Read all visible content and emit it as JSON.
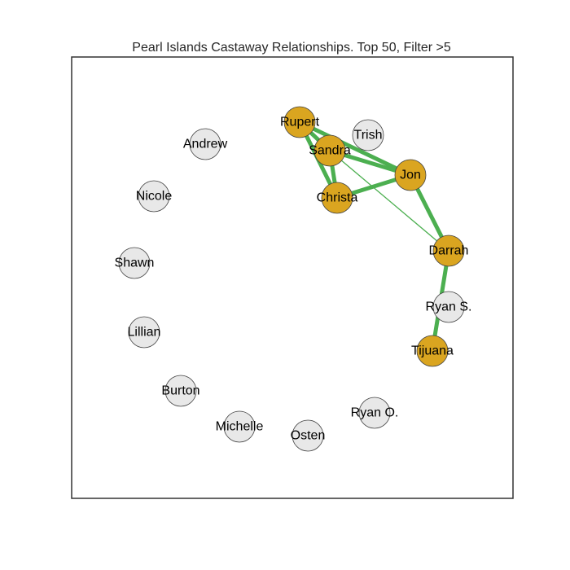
{
  "title": "Pearl Islands Castaway Relationships. Top 50, Filter >5",
  "colors": {
    "highlight_node": "#DAA520",
    "default_node": "#E8E8E8",
    "node_stroke": "#444444",
    "edge": "#4CAF50",
    "frame": "#333333"
  },
  "nodes": [
    {
      "id": "rupert",
      "label": "Rupert",
      "highlight": true
    },
    {
      "id": "trish",
      "label": "Trish",
      "highlight": false
    },
    {
      "id": "sandra",
      "label": "Sandra",
      "highlight": true
    },
    {
      "id": "andrew",
      "label": "Andrew",
      "highlight": false
    },
    {
      "id": "jon",
      "label": "Jon",
      "highlight": true
    },
    {
      "id": "nicole",
      "label": "Nicole",
      "highlight": false
    },
    {
      "id": "christa",
      "label": "Christa",
      "highlight": true
    },
    {
      "id": "darrah",
      "label": "Darrah",
      "highlight": true
    },
    {
      "id": "shawn",
      "label": "Shawn",
      "highlight": false
    },
    {
      "id": "ryan-s",
      "label": "Ryan S.",
      "highlight": false
    },
    {
      "id": "lillian",
      "label": "Lillian",
      "highlight": false
    },
    {
      "id": "tijuana",
      "label": "Tijuana",
      "highlight": true
    },
    {
      "id": "burton",
      "label": "Burton",
      "highlight": false
    },
    {
      "id": "ryan-o",
      "label": "Ryan O.",
      "highlight": false
    },
    {
      "id": "michelle",
      "label": "Michelle",
      "highlight": false
    },
    {
      "id": "osten",
      "label": "Osten",
      "highlight": false
    }
  ],
  "edges": [
    {
      "source": "rupert",
      "target": "sandra",
      "weight": "heavy"
    },
    {
      "source": "rupert",
      "target": "christa",
      "weight": "heavy"
    },
    {
      "source": "rupert",
      "target": "jon",
      "weight": "heavy"
    },
    {
      "source": "sandra",
      "target": "christa",
      "weight": "heavy"
    },
    {
      "source": "sandra",
      "target": "jon",
      "weight": "heavy"
    },
    {
      "source": "christa",
      "target": "jon",
      "weight": "heavy"
    },
    {
      "source": "jon",
      "target": "darrah",
      "weight": "heavy"
    },
    {
      "source": "darrah",
      "target": "tijuana",
      "weight": "heavy"
    },
    {
      "source": "sandra",
      "target": "darrah",
      "weight": "light"
    }
  ]
}
